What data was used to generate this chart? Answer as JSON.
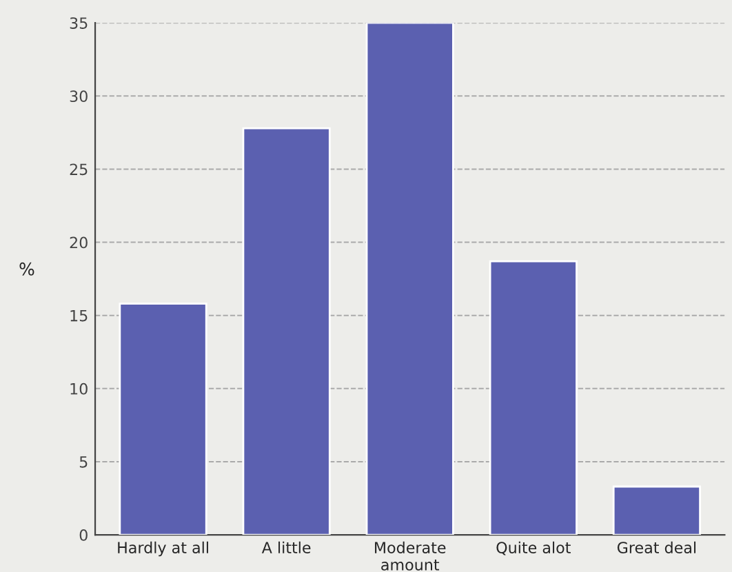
{
  "chart_data": {
    "type": "bar",
    "ylabel": "%",
    "categories": [
      "Hardly at all",
      "A little",
      "Moderate\namount",
      "Quite alot",
      "Great deal"
    ],
    "values": [
      15.8,
      27.8,
      35,
      18.7,
      3.3
    ],
    "color": "#5b60b0",
    "ylim": [
      0,
      35
    ],
    "yticks": [
      0,
      5,
      10,
      15,
      20,
      25,
      30,
      35
    ],
    "grid": "y"
  }
}
